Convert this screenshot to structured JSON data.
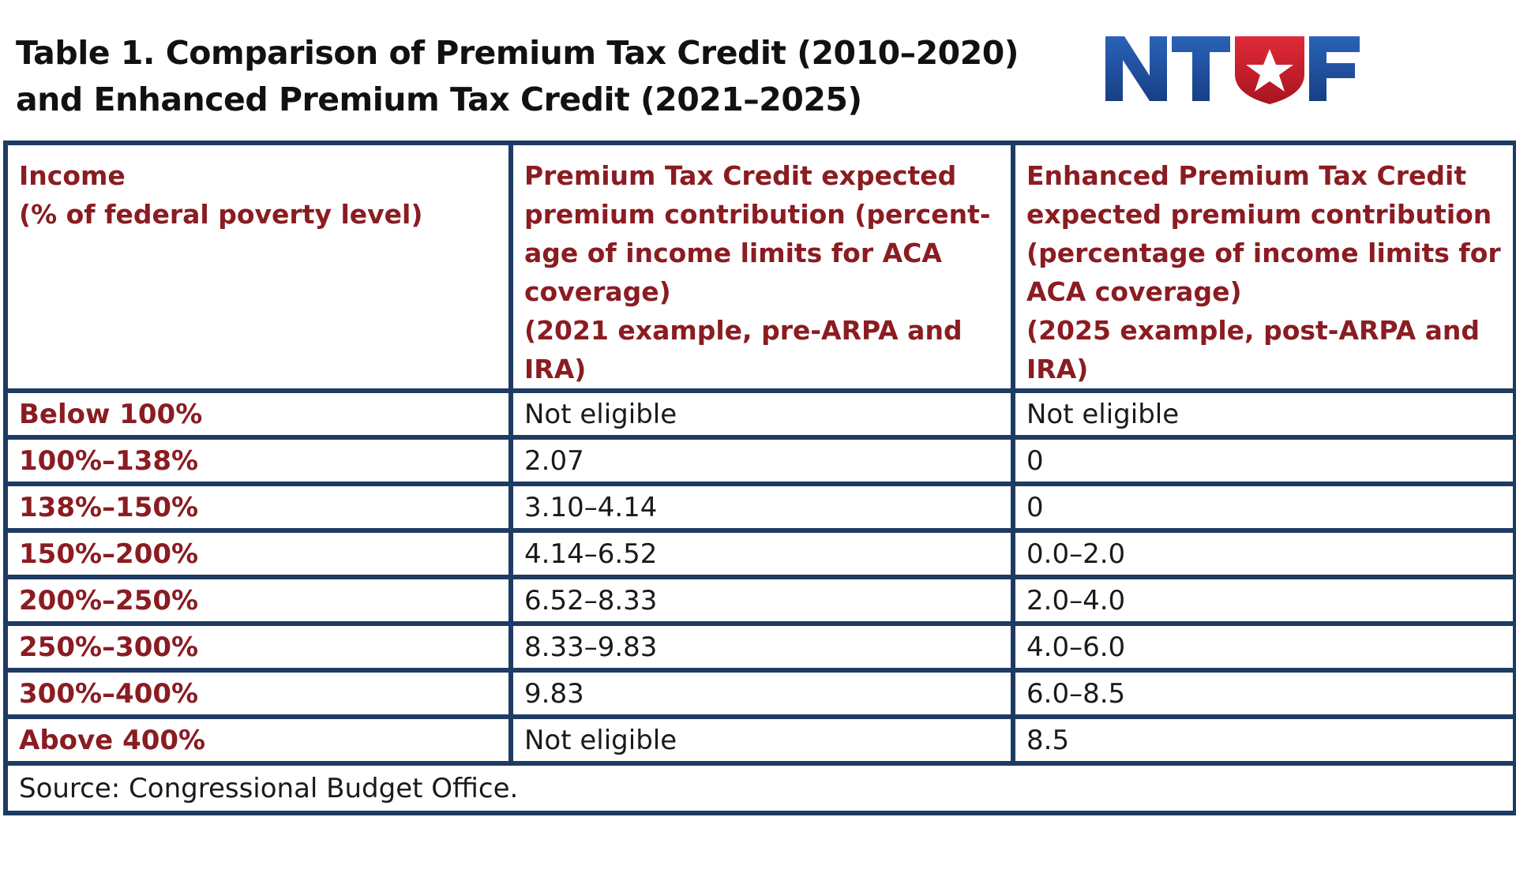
{
  "title": {
    "line1": "Table 1. Comparison of Premium Tax Credit (2010–2020)",
    "line2": "and Enhanced Premium Tax Credit (2021–2025)"
  },
  "logo": {
    "text": "NTUF",
    "colors": {
      "letters": "#1d4e9e",
      "shield": "#c8202f",
      "star": "#ffffff"
    }
  },
  "colors": {
    "header_text": "#8a1c22",
    "border": "#1d3b63",
    "body_text": "#1a1a1a"
  },
  "table": {
    "headers": [
      "Income\n(% of federal poverty level)",
      "Premium Tax Credit expected\npremium contribution (percent-\nage of income limits for ACA\ncoverage)\n(2021 example, pre-ARPA and\nIRA)",
      "Enhanced Premium Tax Credit\nexpected premium contribution\n(percentage of income limits for\nACA coverage)\n(2025 example, post-ARPA and\nIRA)"
    ],
    "rows": [
      {
        "income": "Below 100%",
        "ptc": "Not eligible",
        "enhanced": "Not eligible"
      },
      {
        "income": "100%–138%",
        "ptc": "2.07",
        "enhanced": "0"
      },
      {
        "income": "138%–150%",
        "ptc": "3.10–4.14",
        "enhanced": "0"
      },
      {
        "income": "150%–200%",
        "ptc": "4.14–6.52",
        "enhanced": "0.0–2.0"
      },
      {
        "income": "200%–250%",
        "ptc": "6.52–8.33",
        "enhanced": "2.0–4.0"
      },
      {
        "income": "250%–300%",
        "ptc": "8.33–9.83",
        "enhanced": "4.0–6.0"
      },
      {
        "income": "300%–400%",
        "ptc": "9.83",
        "enhanced": "6.0–8.5"
      },
      {
        "income": "Above 400%",
        "ptc": "Not eligible",
        "enhanced": "8.5"
      }
    ],
    "source": "Source: Congressional Budget Office."
  }
}
